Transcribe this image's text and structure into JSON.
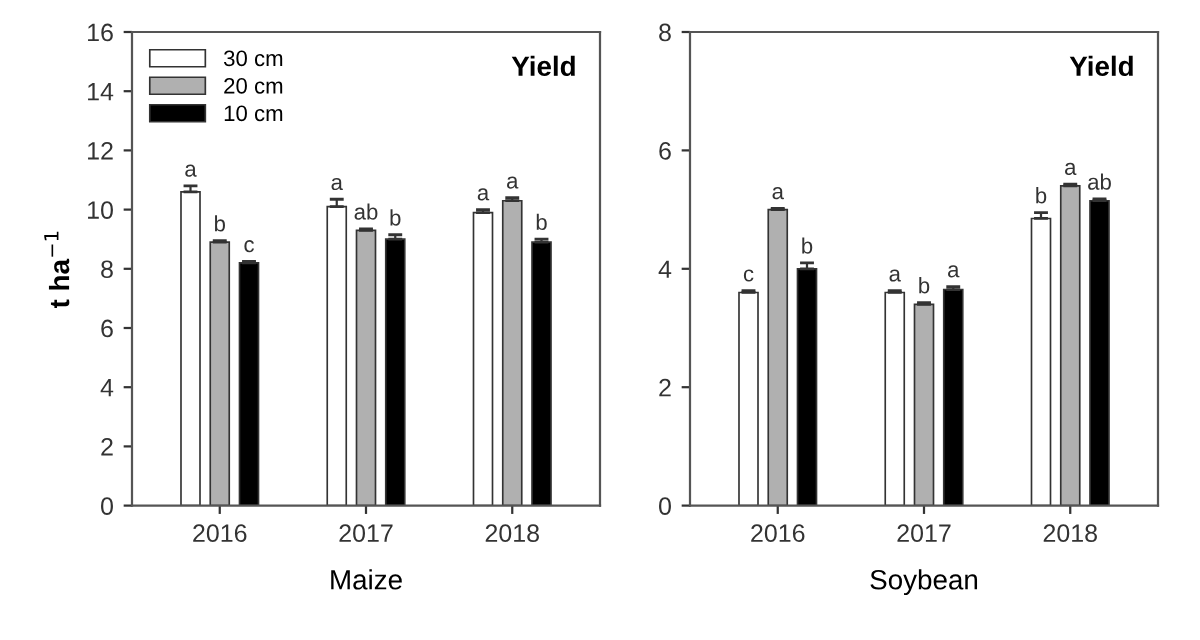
{
  "chart_data": [
    {
      "type": "bar",
      "title": "Yield",
      "xlabel": "Maize",
      "ylabel": "t ha$^{−1}$",
      "categories": [
        "2016",
        "2017",
        "2018"
      ],
      "series": [
        {
          "name": "30 cm",
          "color": "#ffffff",
          "values": [
            10.6,
            10.1,
            9.9
          ],
          "errors": [
            0.2,
            0.25,
            0.1
          ],
          "value_labels": [
            "a",
            "a",
            "a"
          ]
        },
        {
          "name": "20 cm",
          "color": "#b0b0b0",
          "values": [
            8.9,
            9.3,
            10.3
          ],
          "errors": [
            0.05,
            0.05,
            0.1
          ],
          "value_labels": [
            "b",
            "ab",
            "a"
          ]
        },
        {
          "name": "10 cm",
          "color": "#000000",
          "values": [
            8.2,
            9.0,
            8.9
          ],
          "errors": [
            0.05,
            0.15,
            0.1
          ],
          "value_labels": [
            "c",
            "b",
            "b"
          ]
        }
      ],
      "ylim": [
        0,
        16
      ],
      "yticks": [
        0,
        2,
        4,
        6,
        8,
        10,
        12,
        14,
        16
      ],
      "legend": "top left",
      "grid": false
    },
    {
      "type": "bar",
      "title": "Yield",
      "xlabel": "Soybean",
      "categories": [
        "2016",
        "2017",
        "2018"
      ],
      "series": [
        {
          "color": "#ffffff",
          "values": [
            3.6,
            3.6,
            4.85
          ],
          "errors": [
            0.03,
            0.03,
            0.1
          ],
          "value_labels": [
            "c",
            "a",
            "b"
          ]
        },
        {
          "color": "#b0b0b0",
          "values": [
            5.0,
            3.4,
            5.4
          ],
          "errors": [
            0.02,
            0.03,
            0.03
          ],
          "value_labels": [
            "a",
            "b",
            "a"
          ]
        },
        {
          "color": "#000000",
          "values": [
            4.0,
            3.65,
            5.15
          ],
          "errors": [
            0.1,
            0.05,
            0.03
          ],
          "value_labels": [
            "b",
            "a",
            "ab"
          ]
        }
      ],
      "ylim": [
        0,
        8
      ],
      "yticks": [
        0,
        2,
        4,
        6,
        8
      ],
      "grid": false
    }
  ]
}
